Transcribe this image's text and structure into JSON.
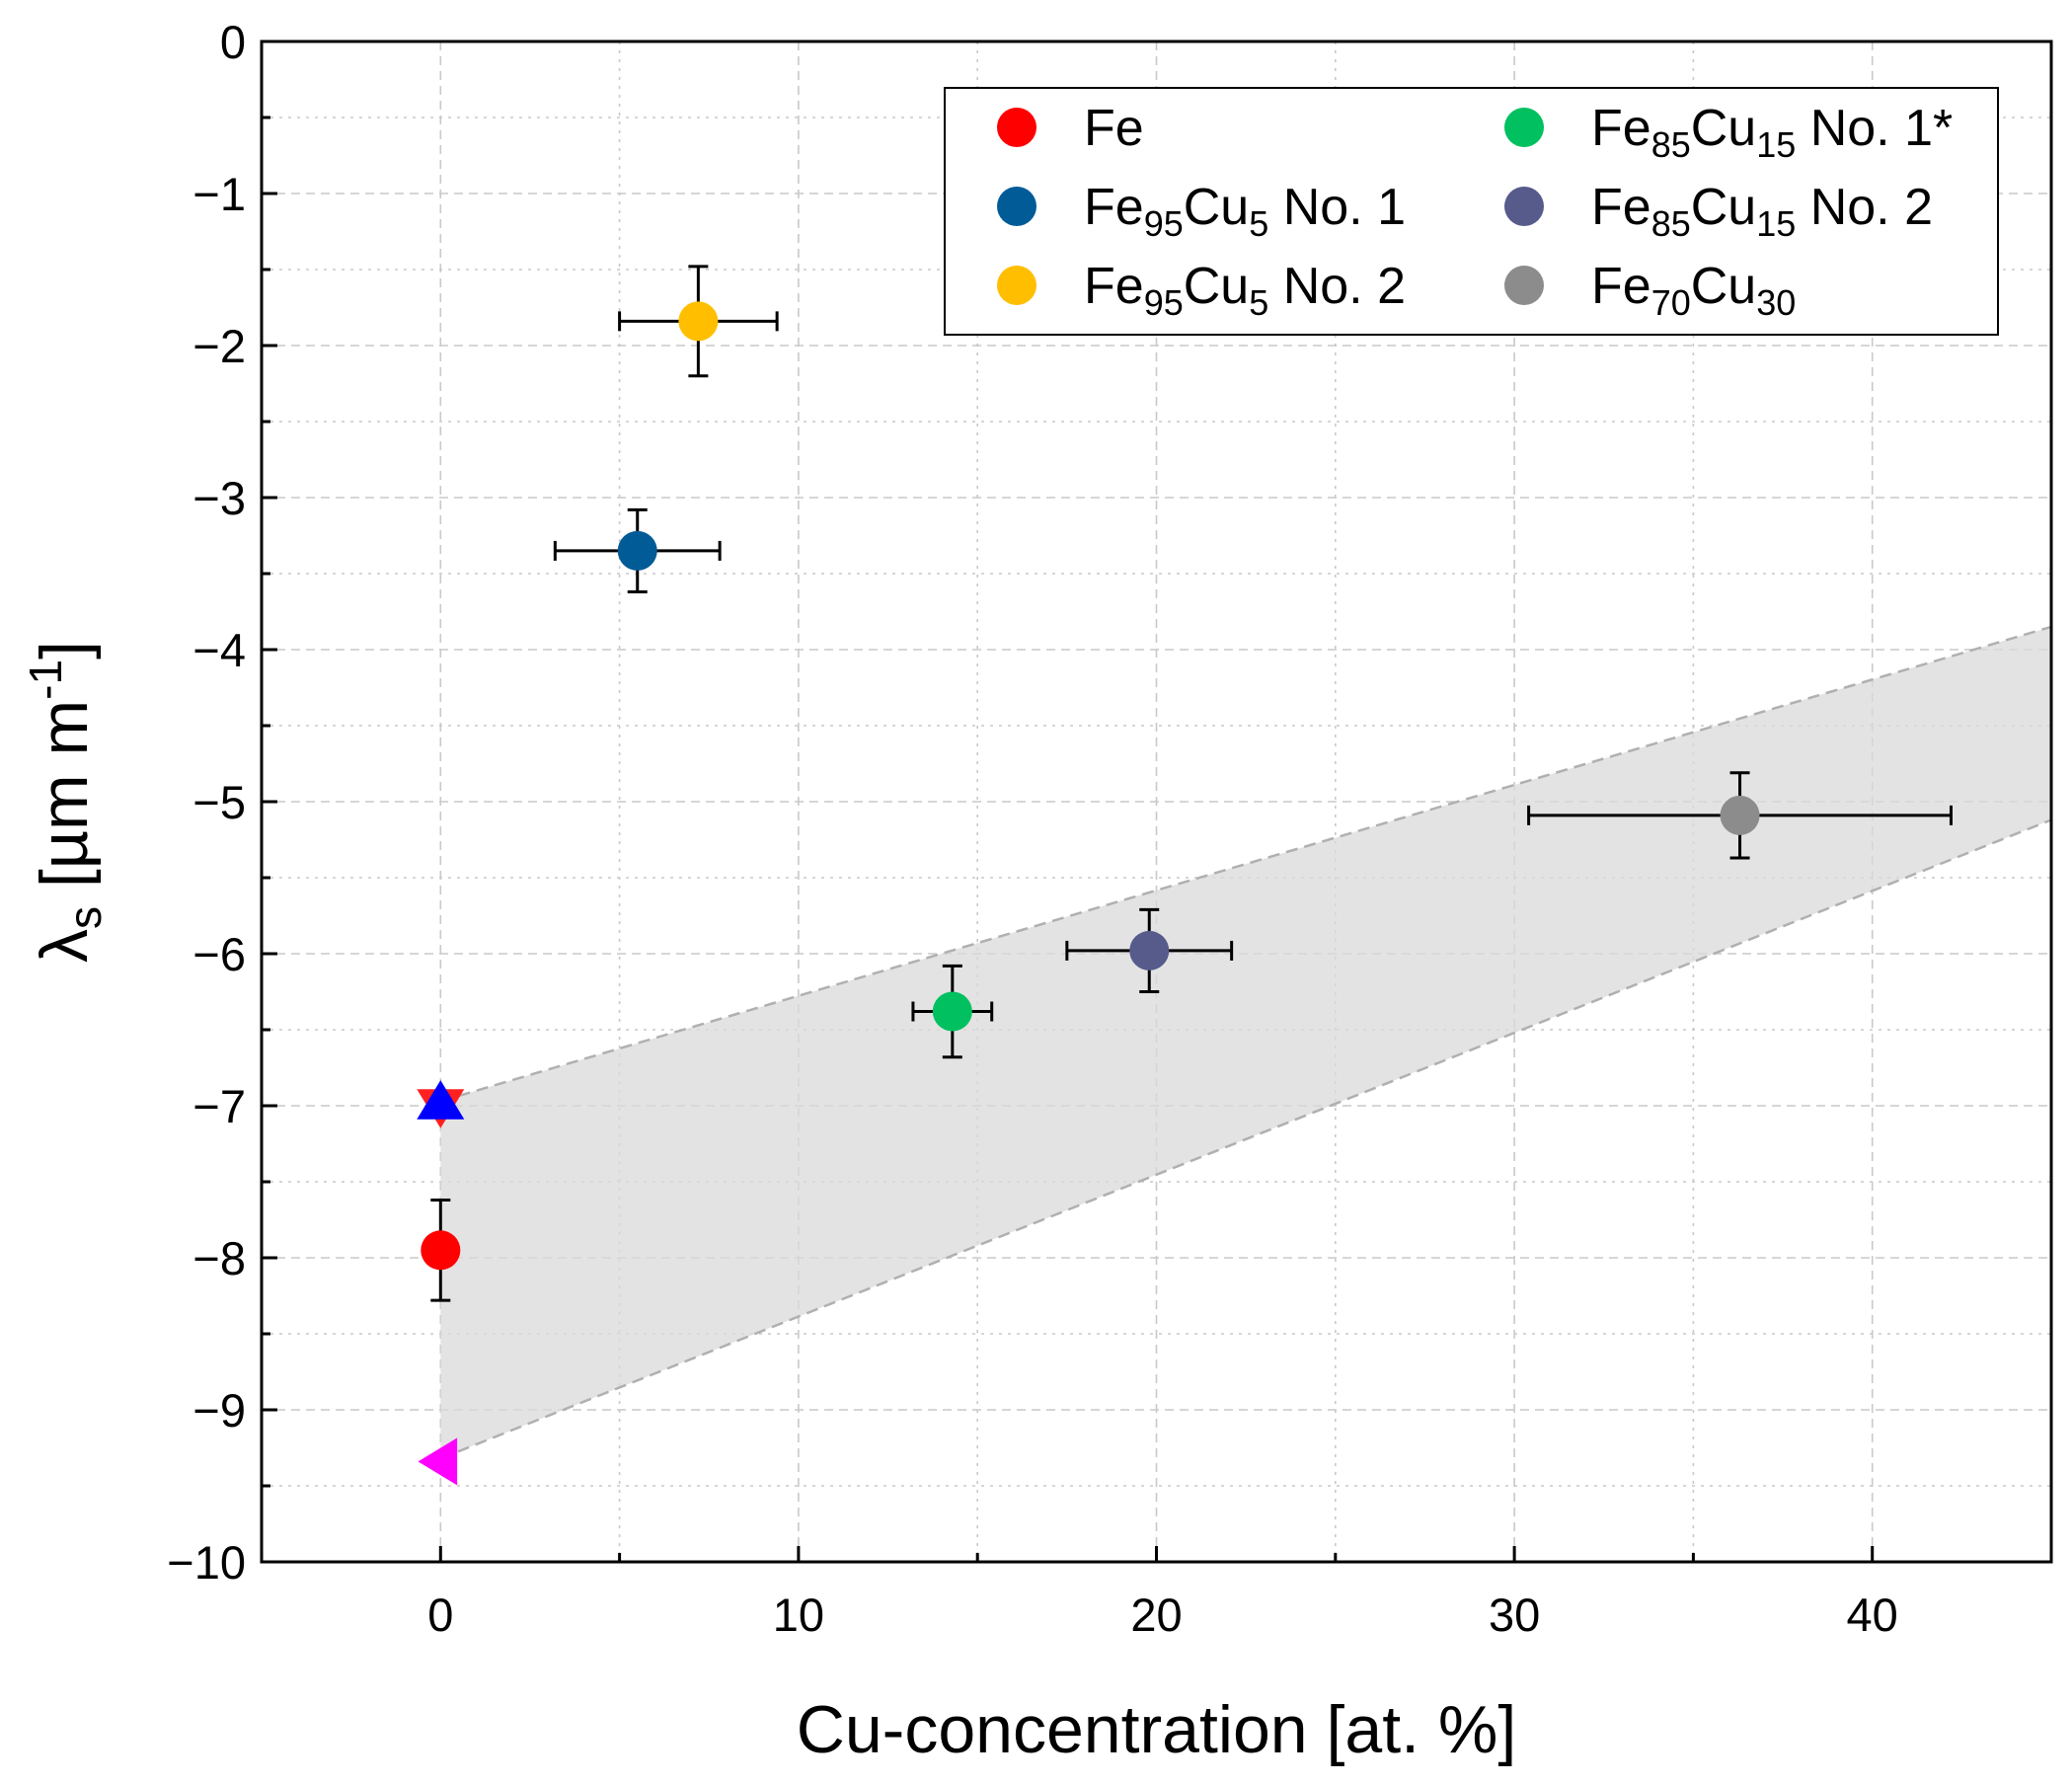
{
  "chart_data": {
    "type": "scatter",
    "title": "",
    "xlabel": "Cu-concentration [at. %]",
    "ylabel": "λ_s [µm m^-1]",
    "ylabel_parts": {
      "lambda": "λ",
      "sub": "s",
      "unit_pre": " [µm m",
      "sup": "-1",
      "unit_post": "]"
    },
    "xlim": [
      -5,
      45
    ],
    "ylim": [
      -10,
      0
    ],
    "x_ticks": [
      0,
      10,
      20,
      30,
      40
    ],
    "x_tick_labels": [
      "0",
      "10",
      "20",
      "30",
      "40"
    ],
    "y_ticks": [
      0,
      -1,
      -2,
      -3,
      -4,
      -5,
      -6,
      -7,
      -8,
      -9,
      -10
    ],
    "y_tick_labels": [
      "0",
      "−1",
      "−2",
      "−3",
      "−4",
      "−5",
      "−6",
      "−7",
      "−8",
      "−9",
      "−10"
    ],
    "grid": true,
    "legend_position": "top-right",
    "series": [
      {
        "name": "Fe",
        "legend_parts": [
          {
            "t": "Fe"
          }
        ],
        "color": "#ff0000",
        "x": 0,
        "y": -7.95,
        "xerr": [
          0,
          0
        ],
        "yerr": [
          0.33,
          0.33
        ]
      },
      {
        "name": "Fe95Cu5 No. 1",
        "legend_parts": [
          {
            "t": "Fe"
          },
          {
            "t": "95",
            "sub": true
          },
          {
            "t": "Cu"
          },
          {
            "t": "5",
            "sub": true
          },
          {
            "t": " No. 1"
          }
        ],
        "color": "#005b96",
        "x": 5.5,
        "y": -3.35,
        "xerr": [
          2.3,
          2.3
        ],
        "yerr": [
          0.27,
          0.27
        ]
      },
      {
        "name": "Fe95Cu5 No. 2",
        "legend_parts": [
          {
            "t": "Fe"
          },
          {
            "t": "95",
            "sub": true
          },
          {
            "t": "Cu"
          },
          {
            "t": "5",
            "sub": true
          },
          {
            "t": " No. 2"
          }
        ],
        "color": "#ffbf00",
        "x": 7.2,
        "y": -1.84,
        "xerr": [
          2.2,
          2.2
        ],
        "yerr": [
          0.36,
          0.36
        ]
      },
      {
        "name": "Fe85Cu15 No. 1*",
        "legend_parts": [
          {
            "t": "Fe"
          },
          {
            "t": "85",
            "sub": true
          },
          {
            "t": "Cu"
          },
          {
            "t": "15",
            "sub": true
          },
          {
            "t": " No. 1*"
          }
        ],
        "color": "#00c060",
        "x": 14.3,
        "y": -6.38,
        "xerr": [
          1.1,
          1.1
        ],
        "yerr": [
          0.3,
          0.3
        ]
      },
      {
        "name": "Fe85Cu15 No. 2",
        "legend_parts": [
          {
            "t": "Fe"
          },
          {
            "t": "85",
            "sub": true
          },
          {
            "t": "Cu"
          },
          {
            "t": "15",
            "sub": true
          },
          {
            "t": " No. 2"
          }
        ],
        "color": "#565b8c",
        "x": 19.8,
        "y": -5.98,
        "xerr": [
          2.3,
          2.3
        ],
        "yerr": [
          0.27,
          0.27
        ]
      },
      {
        "name": "Fe70Cu30",
        "legend_parts": [
          {
            "t": "Fe"
          },
          {
            "t": "70",
            "sub": true
          },
          {
            "t": "Cu"
          },
          {
            "t": "30",
            "sub": true
          }
        ],
        "color": "#8c8c8c",
        "x": 36.3,
        "y": -5.09,
        "xerr": [
          5.9,
          5.9
        ],
        "yerr": [
          0.28,
          0.28
        ]
      }
    ],
    "reference_markers": [
      {
        "shape": "triangle-down",
        "color": "#ff2020",
        "x": 0,
        "y": -7.0
      },
      {
        "shape": "triangle-up",
        "color": "#0000ff",
        "x": 0,
        "y": -6.98
      },
      {
        "shape": "triangle-left",
        "color": "#ff00ff",
        "x": 0,
        "y": -9.34
      }
    ],
    "band": {
      "color": "#d9d9d9",
      "upper": [
        [
          0,
          -6.97
        ],
        [
          45,
          -3.85
        ]
      ],
      "lower": [
        [
          0,
          -9.32
        ],
        [
          45,
          -5.12
        ]
      ]
    }
  }
}
